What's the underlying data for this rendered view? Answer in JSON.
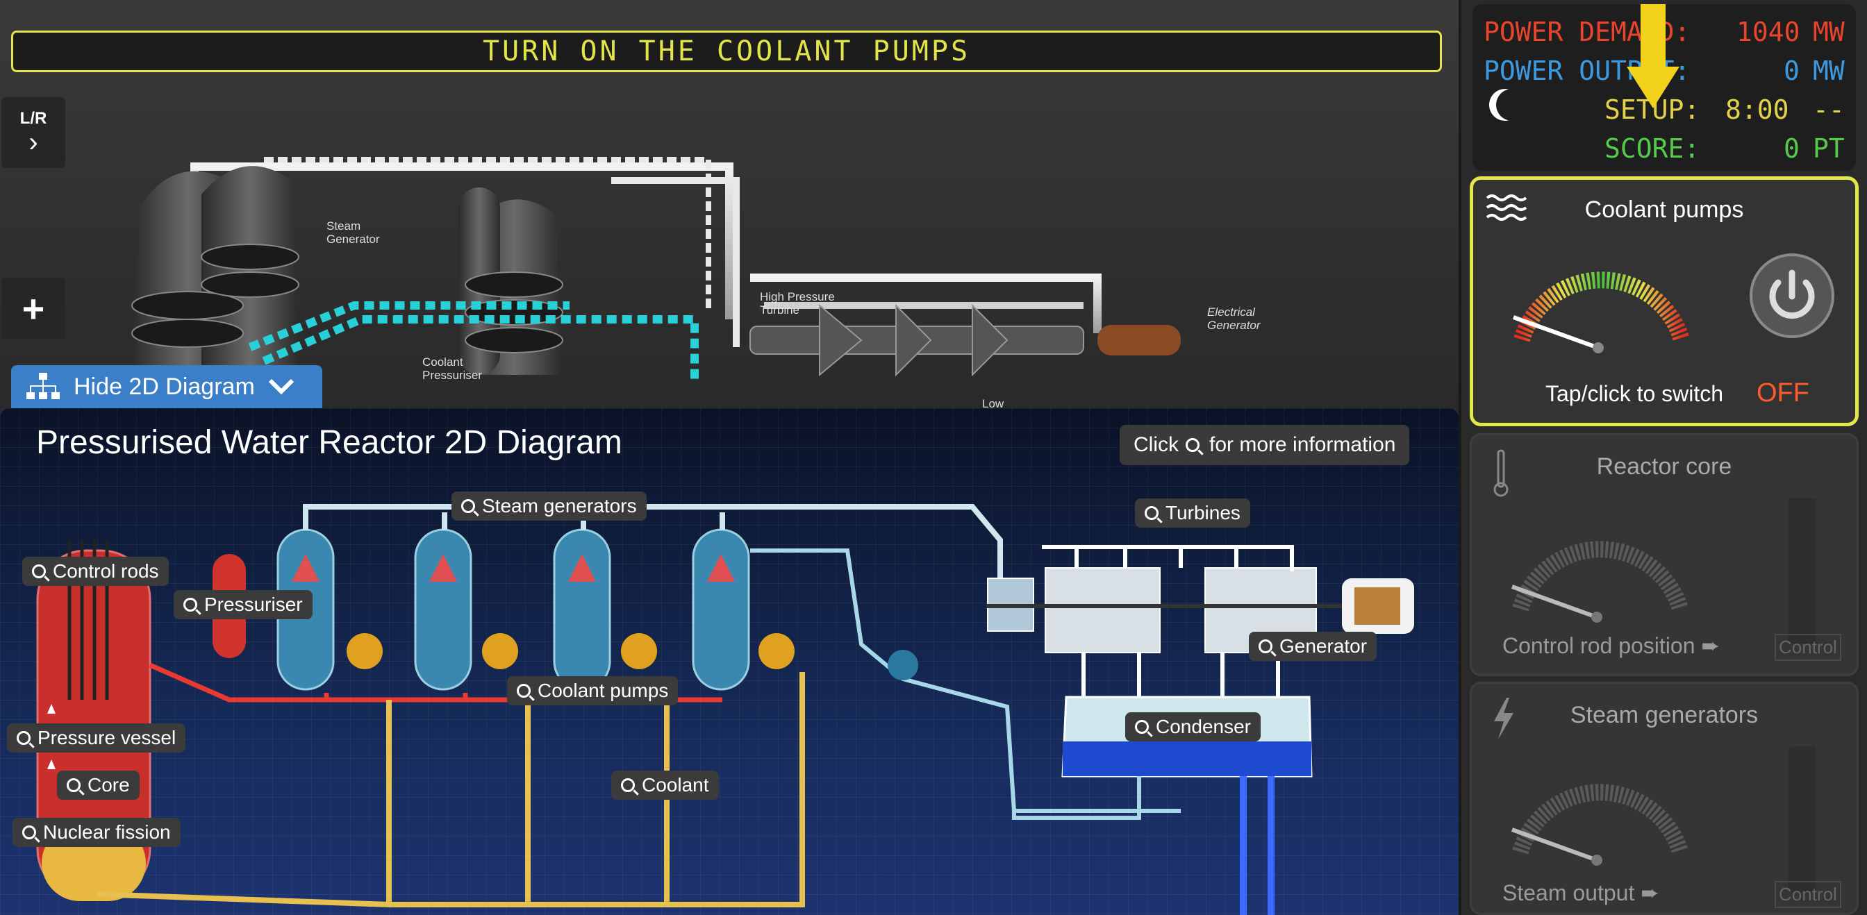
{
  "banner": {
    "text": "TURN ON THE COOLANT PUMPS"
  },
  "left_toolbar": {
    "lr_label": "L/R",
    "chevron": "chevron-right-icon",
    "plus_icon": "plus-icon"
  },
  "scene": {
    "labels": {
      "steam_generator": "Steam\nGenerator",
      "coolant_pressuriser": "Coolant\nPressuriser",
      "high_pressure_turbine": "High Pressure\nTurbine",
      "electrical_generator": "Electrical\nGenerator",
      "low": "Low"
    }
  },
  "toggle_diagram": {
    "label": "Hide 2D Diagram",
    "icon": "diagram-icon",
    "chevron": "chevron-down-icon"
  },
  "diagram": {
    "title": "Pressurised Water Reactor 2D Diagram",
    "info_hint": {
      "prefix": "Click",
      "suffix": "for more information"
    },
    "labels": {
      "control_rods": "Control rods",
      "pressuriser": "Pressuriser",
      "steam_generators": "Steam generators",
      "turbines": "Turbines",
      "generator": "Generator",
      "coolant_pumps": "Coolant pumps",
      "condenser": "Condenser",
      "pressure_vessel": "Pressure vessel",
      "core": "Core",
      "coolant": "Coolant",
      "nuclear_fission": "Nuclear fission"
    }
  },
  "status": {
    "power_demand": {
      "label": "POWER DEMAND:",
      "value": "1040",
      "unit": "MW",
      "color": "#e8452c"
    },
    "power_output": {
      "label": "POWER OUTPUT:",
      "value": "0",
      "unit": "MW",
      "color": "#3c9ae0"
    },
    "setup": {
      "label": "SETUP:",
      "value": "8:00",
      "unit": "--",
      "color": "#e3d34a"
    },
    "score": {
      "label": "SCORE:",
      "value": "0",
      "unit": "PT",
      "color": "#55c94a"
    },
    "night_icon": "moon-icon"
  },
  "controls": {
    "coolant_pumps": {
      "title": "Coolant pumps",
      "icon": "waves-icon",
      "hint": "Tap/click to switch",
      "state": "OFF",
      "gauge_level": 0,
      "power_icon": "power-icon"
    },
    "reactor_core": {
      "title": "Reactor core",
      "icon": "thermometer-icon",
      "sub": "Control rod position ➨",
      "control": "Control",
      "gauge_level": 0
    },
    "steam_generators": {
      "title": "Steam generators",
      "icon": "lightning-icon",
      "sub": "Steam output ➨",
      "control": "Control",
      "gauge_level": 0
    }
  },
  "colors": {
    "accent_yellow": "#e4e74a",
    "diagram_blue": "#3a7fc7",
    "off_red": "#ff5a2a"
  }
}
